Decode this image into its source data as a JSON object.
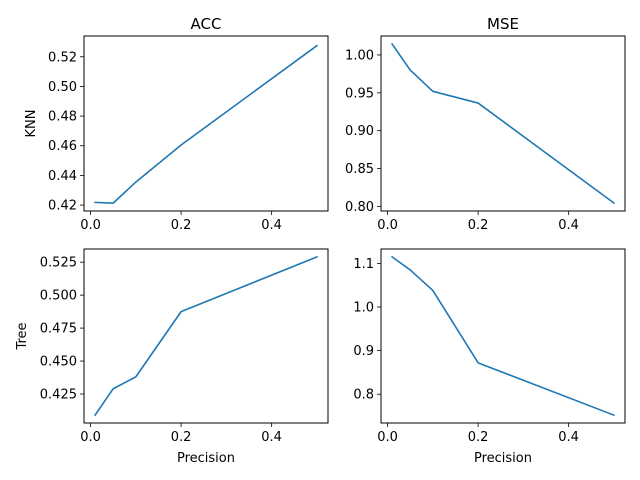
{
  "chart_data": [
    {
      "type": "line",
      "title": "ACC",
      "xlabel": "",
      "ylabel": "KNN",
      "x": [
        0.01,
        0.05,
        0.1,
        0.2,
        0.5
      ],
      "series": [
        {
          "values": [
            0.4218,
            0.4213,
            0.4355,
            0.4605,
            0.5275
          ]
        }
      ],
      "xlim": [
        -0.0145,
        0.5245
      ],
      "ylim": [
        0.416,
        0.534
      ],
      "xticks": [
        0.0,
        0.2,
        0.4
      ],
      "xtick_labels": [
        "0.0",
        "0.2",
        "0.4"
      ],
      "yticks": [
        0.42,
        0.44,
        0.46,
        0.48,
        0.5,
        0.52
      ],
      "ytick_labels": [
        "0.42",
        "0.44",
        "0.46",
        "0.48",
        "0.50",
        "0.52"
      ],
      "grid": false,
      "color": "#1f77b4"
    },
    {
      "type": "line",
      "title": "MSE",
      "xlabel": "",
      "ylabel": "",
      "x": [
        0.01,
        0.05,
        0.1,
        0.2,
        0.5
      ],
      "series": [
        {
          "values": [
            1.0145,
            0.98,
            0.952,
            0.9365,
            0.8045
          ]
        }
      ],
      "xlim": [
        -0.0145,
        0.5245
      ],
      "ylim": [
        0.794,
        1.025
      ],
      "xticks": [
        0.0,
        0.2,
        0.4
      ],
      "xtick_labels": [
        "0.0",
        "0.2",
        "0.4"
      ],
      "yticks": [
        0.8,
        0.85,
        0.9,
        0.95,
        1.0
      ],
      "ytick_labels": [
        "0.80",
        "0.85",
        "0.90",
        "0.95",
        "1.00"
      ],
      "grid": false,
      "color": "#1f77b4"
    },
    {
      "type": "line",
      "title": "",
      "xlabel": "Precision",
      "ylabel": "Tree",
      "x": [
        0.01,
        0.05,
        0.1,
        0.2,
        0.5
      ],
      "series": [
        {
          "values": [
            0.409,
            0.429,
            0.438,
            0.4875,
            0.529
          ]
        }
      ],
      "xlim": [
        -0.0145,
        0.5245
      ],
      "ylim": [
        0.403,
        0.535
      ],
      "xticks": [
        0.0,
        0.2,
        0.4
      ],
      "xtick_labels": [
        "0.0",
        "0.2",
        "0.4"
      ],
      "yticks": [
        0.425,
        0.45,
        0.475,
        0.5,
        0.525
      ],
      "ytick_labels": [
        "0.425",
        "0.450",
        "0.475",
        "0.500",
        "0.525"
      ],
      "grid": false,
      "color": "#1f77b4"
    },
    {
      "type": "line",
      "title": "",
      "xlabel": "Precision",
      "ylabel": "",
      "x": [
        0.01,
        0.05,
        0.1,
        0.2,
        0.5
      ],
      "series": [
        {
          "values": [
            1.115,
            1.085,
            1.038,
            0.872,
            0.752
          ]
        }
      ],
      "xlim": [
        -0.0145,
        0.5245
      ],
      "ylim": [
        0.734,
        1.133
      ],
      "xticks": [
        0.0,
        0.2,
        0.4
      ],
      "xtick_labels": [
        "0.0",
        "0.2",
        "0.4"
      ],
      "yticks": [
        0.8,
        0.9,
        1.0,
        1.1
      ],
      "ytick_labels": [
        "0.8",
        "0.9",
        "1.0",
        "1.1"
      ],
      "grid": false,
      "color": "#1f77b4"
    }
  ]
}
